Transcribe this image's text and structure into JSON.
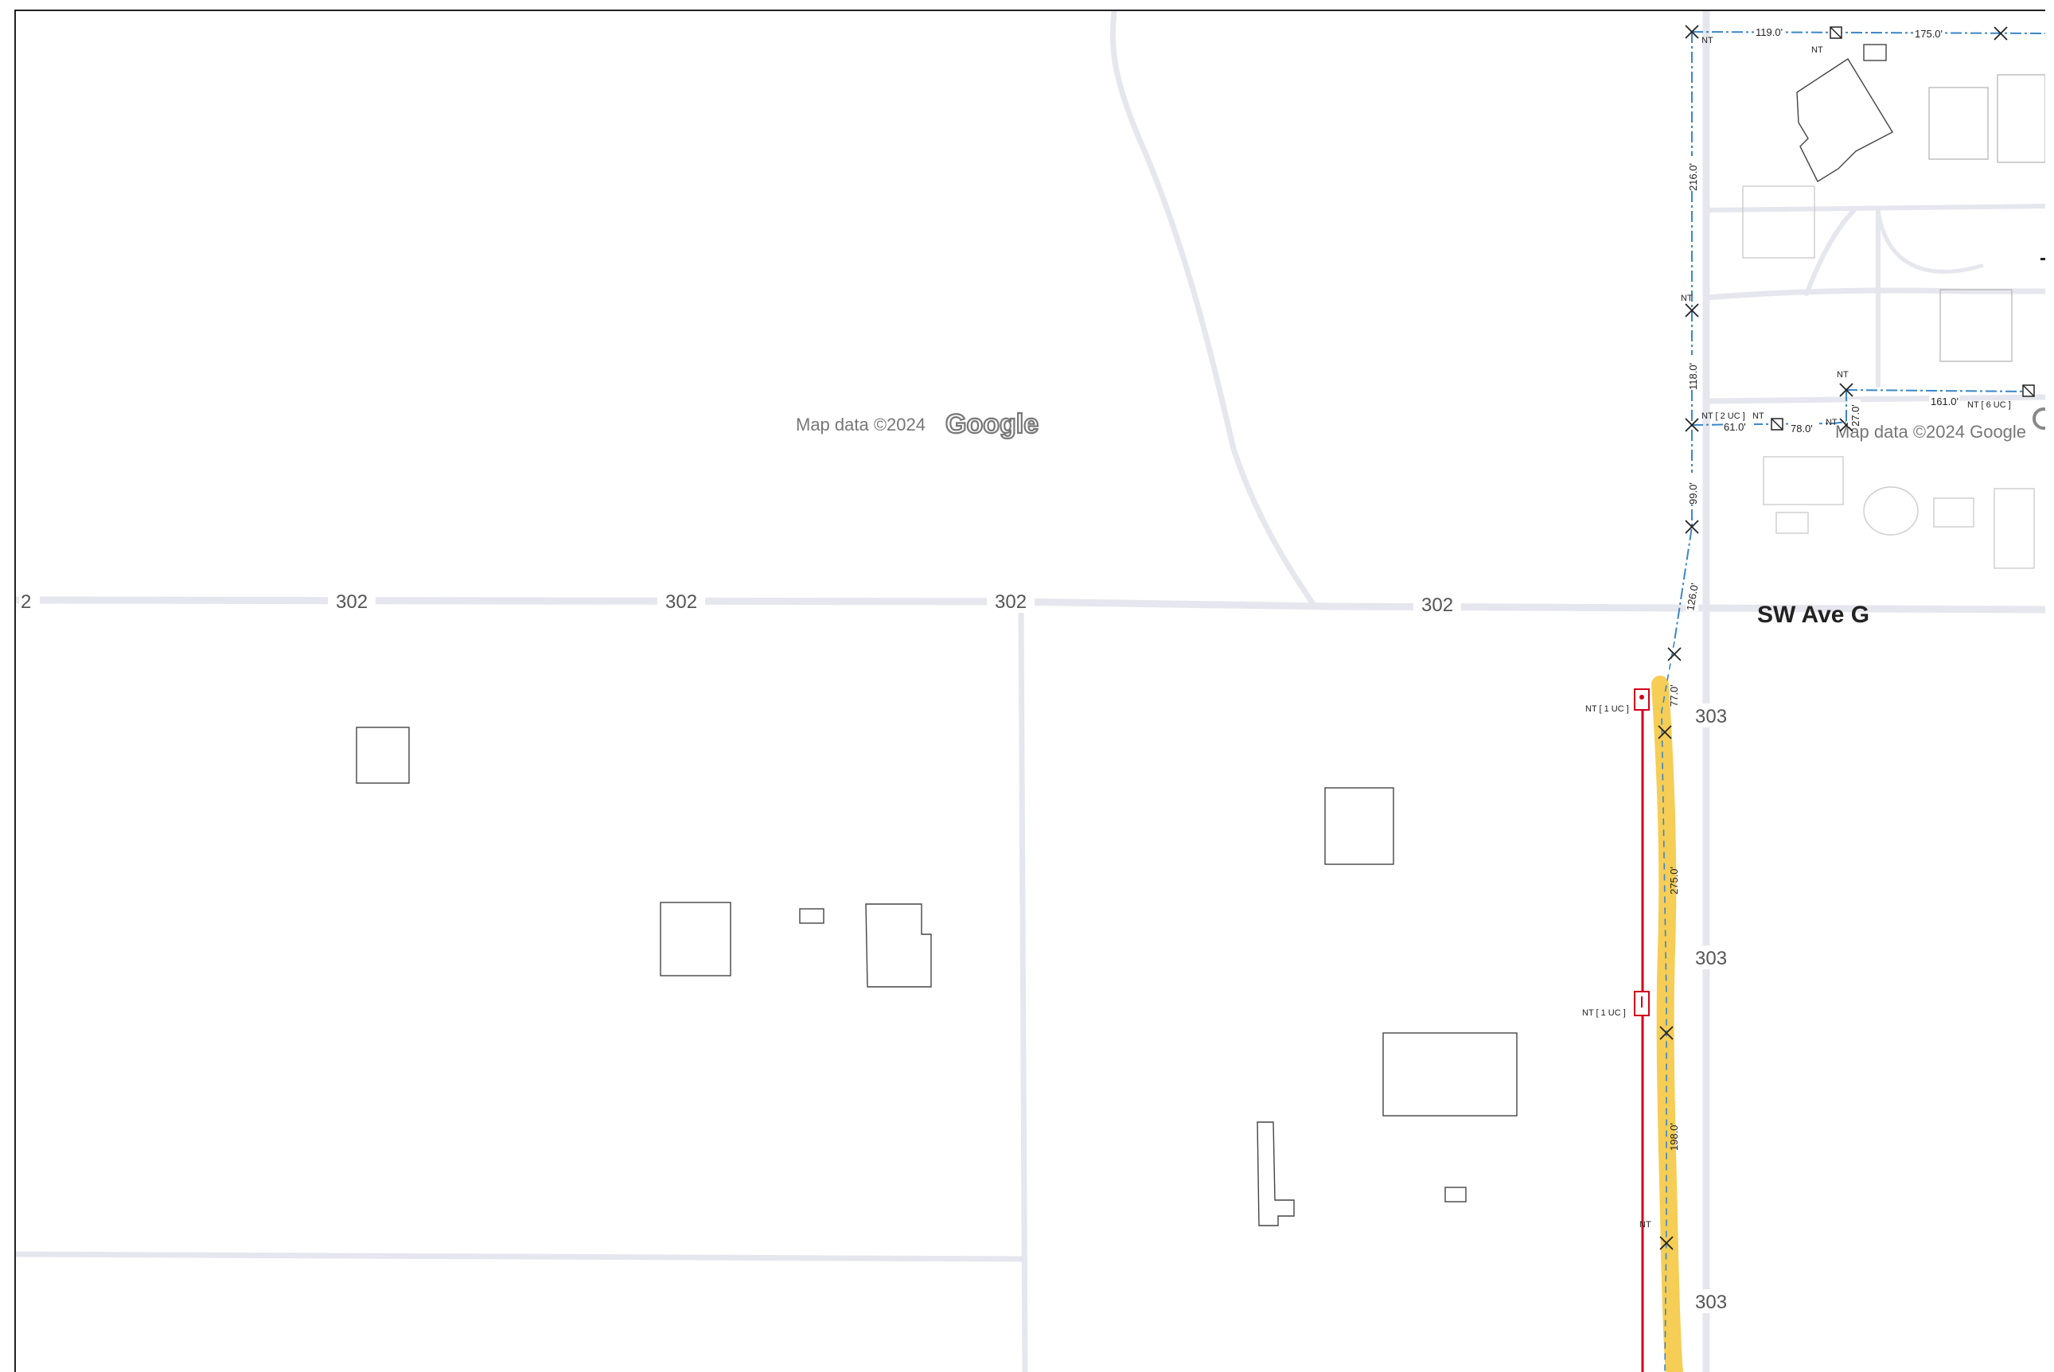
{
  "map": {
    "attribution_left": "Map data ©2024",
    "google_logo_left": "Google",
    "attribution_right": "Map data ©2024 Google",
    "street_label": "SW Ave G",
    "road_302": [
      "2",
      "302",
      "302",
      "302",
      "302"
    ],
    "road_303": [
      "303",
      "303",
      "303"
    ]
  },
  "overlay": {
    "span_lengths": [
      "119.0'",
      "175.0'",
      "216.0'",
      "118.0'",
      "61.0'",
      "78.0'",
      "27.0'",
      "161.0'",
      "99.0'",
      "126.0'",
      "77.0'",
      "275.0'",
      "198.0'"
    ],
    "labels": {
      "nt_top": "NT",
      "nt_top2": "NT",
      "nt_mid": "NT",
      "nt_2uc": "NT [ 2 UC ]",
      "nt_a": "NT",
      "nt_b": "NT",
      "nt_c": "NT",
      "nt_6uc": "NT [ 6 UC ]",
      "nt_1uc_a": "NT [ 1 UC ]",
      "nt_1uc_b": "NT [ 1 UC ]",
      "nt_low": "NT"
    },
    "colors": {
      "proposed_line": "#3a86c8",
      "red_line": "#d1001c",
      "highlight": "#f5c842",
      "road": "#e6e6ee"
    },
    "icons": [
      "pole-x-icon",
      "pole-square-icon",
      "transformer-icon"
    ]
  }
}
